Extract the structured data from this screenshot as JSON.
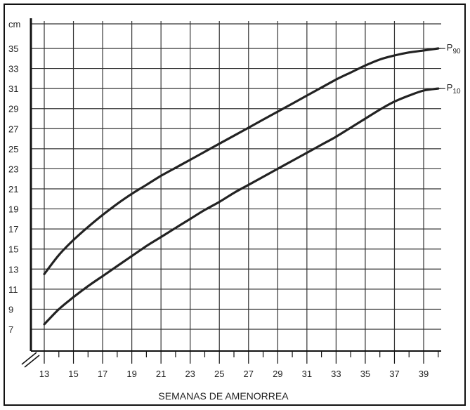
{
  "chart_data": {
    "type": "line",
    "title": "",
    "xlabel": "SEMANAS DE AMENORREA",
    "ylabel": "cm",
    "x_ticks": [
      13,
      15,
      17,
      19,
      21,
      23,
      25,
      27,
      29,
      31,
      33,
      35,
      37,
      39
    ],
    "y_ticks": [
      7,
      9,
      11,
      13,
      15,
      17,
      19,
      21,
      23,
      25,
      27,
      29,
      31,
      33,
      35
    ],
    "xlim": [
      13,
      40
    ],
    "ylim": [
      6,
      37
    ],
    "grid": true,
    "axis_break": true,
    "series": [
      {
        "name": "P90",
        "label_main": "P",
        "label_sub": "90",
        "x": [
          13,
          14,
          15,
          16,
          17,
          18,
          19,
          20,
          21,
          22,
          23,
          24,
          25,
          26,
          27,
          28,
          29,
          30,
          31,
          32,
          33,
          34,
          35,
          36,
          37,
          38,
          39,
          40
        ],
        "values": [
          12.5,
          14.4,
          15.9,
          17.2,
          18.4,
          19.5,
          20.5,
          21.4,
          22.3,
          23.1,
          23.9,
          24.7,
          25.5,
          26.3,
          27.1,
          27.9,
          28.7,
          29.5,
          30.3,
          31.1,
          31.9,
          32.6,
          33.3,
          33.9,
          34.3,
          34.6,
          34.8,
          35.0
        ]
      },
      {
        "name": "P10",
        "label_main": "P",
        "label_sub": "10",
        "x": [
          13,
          14,
          15,
          16,
          17,
          18,
          19,
          20,
          21,
          22,
          23,
          24,
          25,
          26,
          27,
          28,
          29,
          30,
          31,
          32,
          33,
          34,
          35,
          36,
          37,
          38,
          39,
          40
        ],
        "values": [
          7.5,
          9.0,
          10.2,
          11.3,
          12.3,
          13.3,
          14.3,
          15.3,
          16.2,
          17.1,
          18.0,
          18.9,
          19.7,
          20.6,
          21.4,
          22.2,
          23.0,
          23.8,
          24.6,
          25.4,
          26.2,
          27.1,
          28.0,
          28.9,
          29.7,
          30.3,
          30.8,
          31.0
        ]
      }
    ],
    "colors": {
      "line": "#222222",
      "grid": "#333333",
      "frame": "#111111"
    }
  }
}
